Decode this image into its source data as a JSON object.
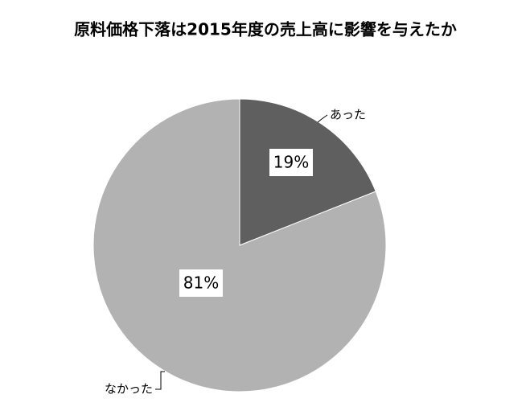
{
  "chart_data": {
    "type": "pie",
    "title": "原料価格下落は2015年度の売上高に影響を与えたか",
    "categories": [
      "あった",
      "なかった"
    ],
    "values": [
      19,
      81
    ],
    "value_labels": [
      "19%",
      "81%"
    ],
    "colors": [
      "#5f5f5f",
      "#b2b2b2"
    ],
    "start_angle": 0,
    "direction": "clockwise"
  }
}
